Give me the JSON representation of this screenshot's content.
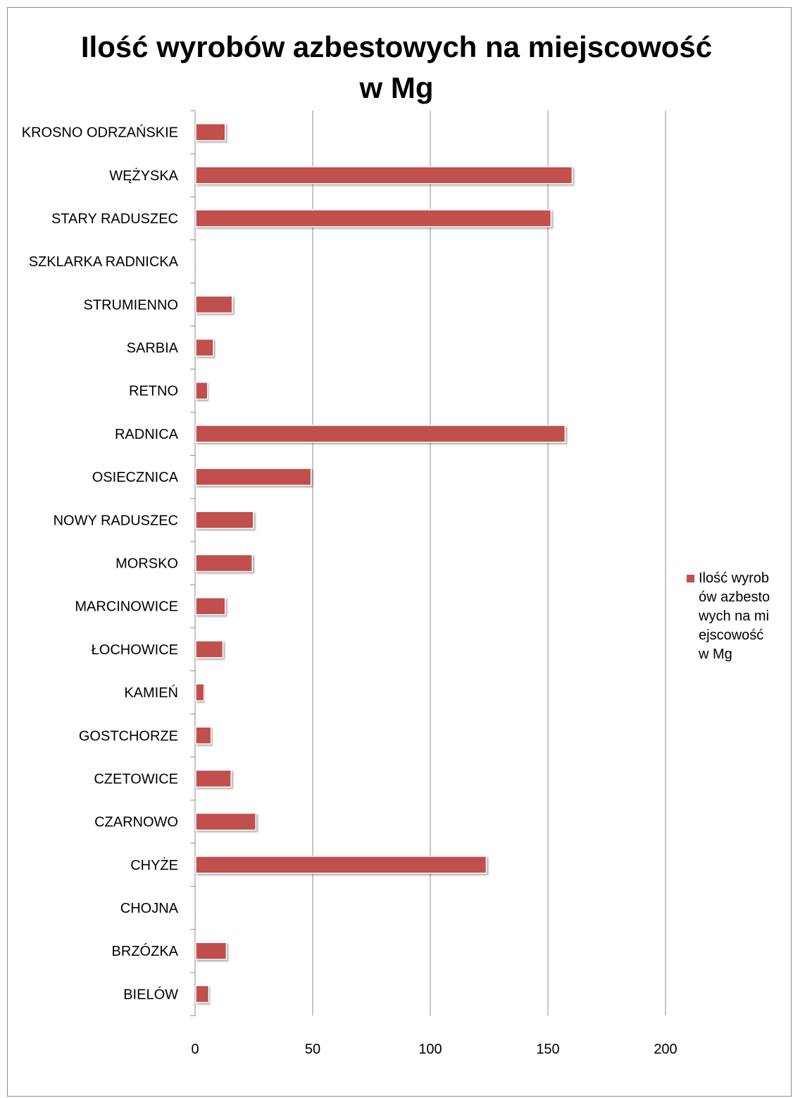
{
  "chart_data": {
    "type": "bar",
    "orientation": "horizontal",
    "title_lines": [
      "Ilość wyrobów azbestowych na miejscowość",
      "w Mg"
    ],
    "xlabel": "",
    "ylabel": "",
    "xlim": [
      0,
      200
    ],
    "xticks": [
      "0",
      "50",
      "100",
      "150",
      "200"
    ],
    "xtick_values": [
      0,
      50,
      100,
      150,
      200
    ],
    "grid": true,
    "legend_position": "right",
    "bar_color": "#c0504d",
    "categories": [
      "KROSNO ODRZAŃSKIE",
      "WĘŻYSKA",
      "STARY RADUSZEC",
      "SZKLARKA RADNICKA",
      "STRUMIENNO",
      "SARBIA",
      "RETNO",
      "RADNICA",
      "OSIECZNICA",
      "NOWY RADUSZEC",
      "MORSKO",
      "MARCINOWICE",
      "ŁOCHOWICE",
      "KAMIEŃ",
      "GOSTCHORZE",
      "CZETOWICE",
      "CZARNOWO",
      "CHYŻE",
      "CHOJNA",
      "BRZÓZKA",
      "BIELÓW"
    ],
    "series": [
      {
        "name": "Ilość wyrobów azbestowych na miejscowość w Mg",
        "values": [
          12.5,
          160,
          151,
          0.3,
          15.5,
          7.5,
          5,
          157,
          49,
          24.5,
          24,
          12.5,
          11.5,
          3.5,
          6.5,
          15,
          25.5,
          123.5,
          0.3,
          13,
          5.5
        ]
      }
    ]
  }
}
